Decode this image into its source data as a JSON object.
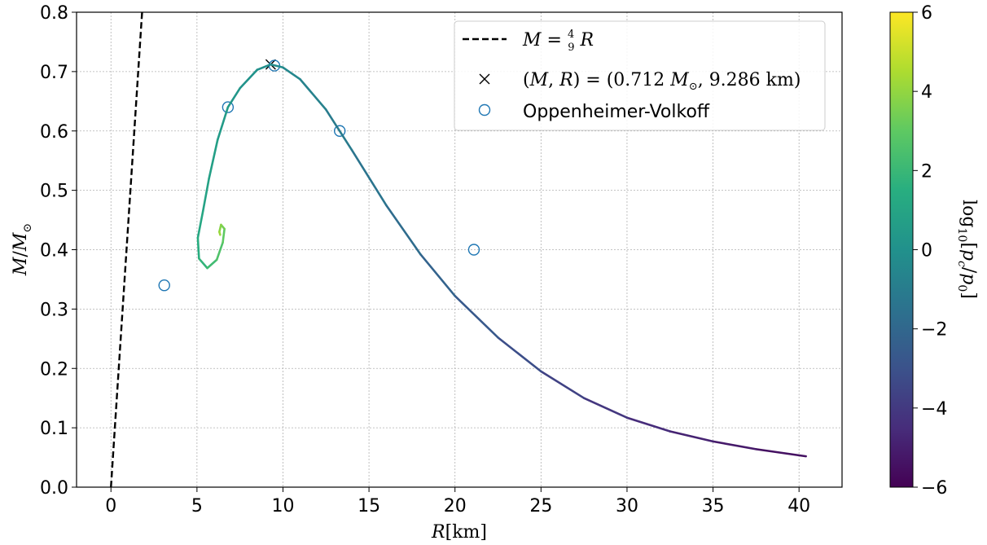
{
  "chart_data": {
    "type": "line",
    "xlabel": "R[km]",
    "ylabel": "M/M⊙",
    "xlim": [
      -2,
      42.5
    ],
    "ylim": [
      0,
      0.8
    ],
    "x_ticks": [
      "0",
      "5",
      "10",
      "15",
      "20",
      "25",
      "30",
      "35",
      "40"
    ],
    "y_ticks": [
      "0.0",
      "0.1",
      "0.2",
      "0.3",
      "0.4",
      "0.5",
      "0.6",
      "0.7",
      "0.8"
    ],
    "grid": true,
    "legend_position": "top-right",
    "series": [
      {
        "kind": "dashed-line",
        "label": "M = 4/9 R",
        "points": [
          [
            0,
            0
          ],
          [
            1.81,
            0.8
          ]
        ],
        "color": "#000000"
      },
      {
        "kind": "marker-x",
        "label": "(M, R) = (0.712 M⊙, 9.286 km)",
        "points": [
          [
            9.286,
            0.712
          ]
        ],
        "color": "#000000"
      },
      {
        "kind": "open-circles",
        "label": "Oppenheimer-Volkoff",
        "points": [
          [
            3.1,
            0.34
          ],
          [
            6.8,
            0.64
          ],
          [
            9.5,
            0.71
          ],
          [
            13.3,
            0.6
          ],
          [
            21.1,
            0.4
          ]
        ],
        "color": "#1f77b4"
      },
      {
        "kind": "colored-curve",
        "colorvar": "log10 central pressure",
        "points": [
          [
            40.4,
            0.052,
            -5.6
          ],
          [
            37.5,
            0.064,
            -5.3
          ],
          [
            35.0,
            0.077,
            -5.0
          ],
          [
            32.5,
            0.094,
            -4.7
          ],
          [
            30.0,
            0.117,
            -4.3
          ],
          [
            27.5,
            0.15,
            -3.9
          ],
          [
            25.0,
            0.195,
            -3.4
          ],
          [
            22.5,
            0.252,
            -2.9
          ],
          [
            20.0,
            0.322,
            -2.4
          ],
          [
            18.0,
            0.392,
            -2.0
          ],
          [
            16.0,
            0.475,
            -1.6
          ],
          [
            14.0,
            0.568,
            -1.2
          ],
          [
            12.5,
            0.636,
            -0.9
          ],
          [
            11.0,
            0.687,
            -0.6
          ],
          [
            10.0,
            0.707,
            -0.4
          ],
          [
            9.286,
            0.712,
            -0.2
          ],
          [
            8.5,
            0.703,
            0.0
          ],
          [
            7.5,
            0.672,
            0.2
          ],
          [
            6.8,
            0.64,
            0.4
          ],
          [
            6.2,
            0.585,
            0.6
          ],
          [
            5.7,
            0.52,
            0.8
          ],
          [
            5.35,
            0.465,
            1.0
          ],
          [
            5.05,
            0.42,
            1.3
          ],
          [
            5.12,
            0.385,
            1.6
          ],
          [
            5.6,
            0.369,
            2.0
          ],
          [
            6.15,
            0.383,
            2.4
          ],
          [
            6.5,
            0.412,
            2.8
          ],
          [
            6.6,
            0.435,
            3.2
          ],
          [
            6.4,
            0.442,
            3.6
          ],
          [
            6.3,
            0.43,
            4.0
          ],
          [
            6.35,
            0.425,
            4.3
          ]
        ]
      }
    ],
    "legend": {
      "entries": [
        {
          "marker": "dashed-line",
          "text": "M = 4/9 R"
        },
        {
          "marker": "x",
          "text": "(M, R) = (0.712 M⊙, 9.286 km)"
        },
        {
          "marker": "circle",
          "text": "Oppenheimer-Volkoff"
        }
      ]
    },
    "colorbar": {
      "label": "log10[pc/p0]",
      "range": [
        -6,
        6
      ],
      "ticks": [
        "−6",
        "−4",
        "−2",
        "0",
        "2",
        "4",
        "6"
      ],
      "colormap": "viridis"
    }
  }
}
